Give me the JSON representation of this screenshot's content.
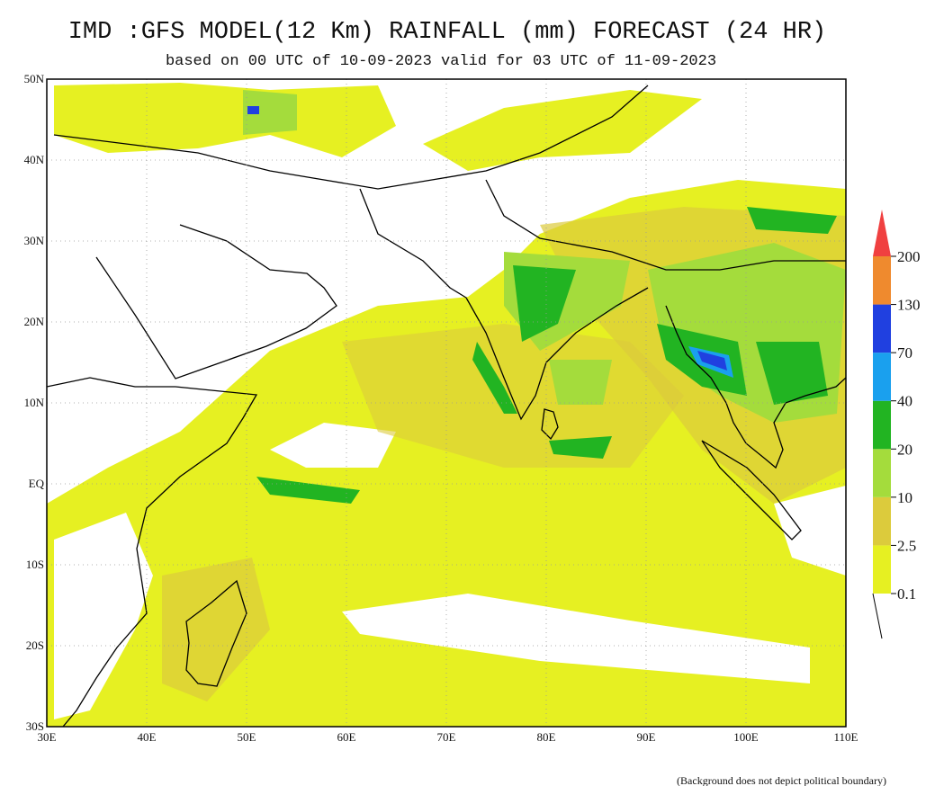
{
  "header": {
    "title": "IMD :GFS MODEL(12 Km) RAINFALL (mm) FORECAST (24 HR)",
    "subtitle": "based on 00 UTC of 10-09-2023 valid for 03 UTC of 11-09-2023"
  },
  "map": {
    "lat_labels": [
      "50N",
      "40N",
      "30N",
      "20N",
      "10N",
      "EQ",
      "10S",
      "20S",
      "30S"
    ],
    "lon_labels": [
      "30E",
      "40E",
      "50E",
      "60E",
      "70E",
      "80E",
      "90E",
      "100E",
      "110E"
    ]
  },
  "legend": {
    "levels": [
      "0.1",
      "2.5",
      "10",
      "20",
      "40",
      "70",
      "130",
      "200"
    ],
    "colors": [
      "#e6f022",
      "#dccb3c",
      "#a4dc3c",
      "#22b422",
      "#1aa0ee",
      "#2040e0",
      "#ef8a2e",
      "#f04040"
    ]
  },
  "footer": {
    "note": "(Background does not depict political boundary)"
  }
}
